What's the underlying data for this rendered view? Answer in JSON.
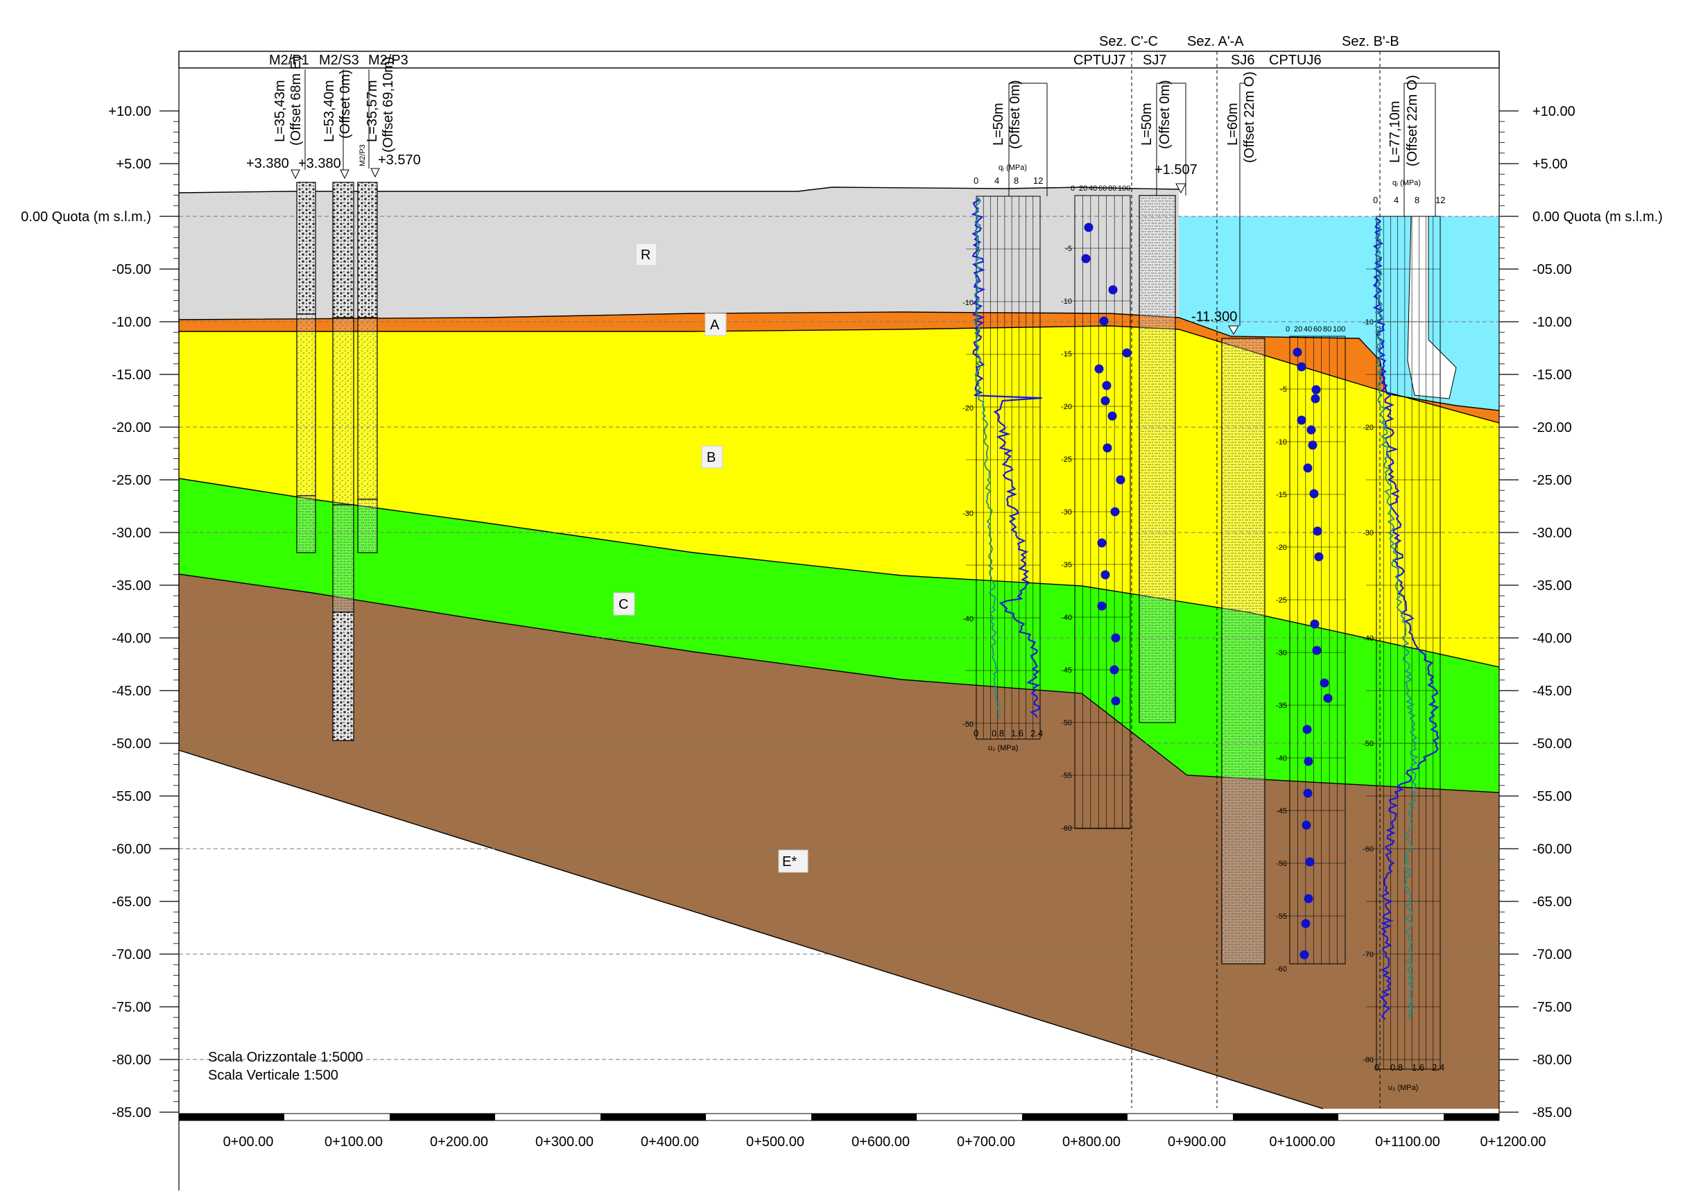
{
  "header": {
    "labels_top": [
      "Sez. C'-C",
      "Sez. A'-A",
      "Sez. B'-B"
    ],
    "labels_bottom": [
      "M2/P1",
      "M2/S3",
      "M2/P3",
      "CPTUJ7",
      "SJ7",
      "SJ6",
      "CPTUJ6"
    ]
  },
  "elevation_axis": {
    "ticks": [
      "+10.00",
      "+5.00",
      "0.00 Quota (m s.l.m.)",
      "-05.00",
      "-10.00",
      "-15.00",
      "-20.00",
      "-25.00",
      "-30.00",
      "-35.00",
      "-40.00",
      "-45.00",
      "-50.00",
      "-55.00",
      "-60.00",
      "-65.00",
      "-70.00",
      "-75.00",
      "-80.00",
      "-85.00"
    ],
    "values": [
      10,
      5,
      0,
      -5,
      -10,
      -15,
      -20,
      -25,
      -30,
      -35,
      -40,
      -45,
      -50,
      -55,
      -60,
      -65,
      -70,
      -75,
      -80,
      -85
    ]
  },
  "chainage_axis": {
    "ticks": [
      "0+00.00",
      "0+100.00",
      "0+200.00",
      "0+300.00",
      "0+400.00",
      "0+500.00",
      "0+600.00",
      "0+700.00",
      "0+800.00",
      "0+900.00",
      "0+1000.00",
      "0+1100.00",
      "0+1200.00"
    ],
    "values": [
      0,
      100,
      200,
      300,
      400,
      500,
      600,
      700,
      800,
      900,
      1000,
      1100,
      1200
    ]
  },
  "layers": [
    {
      "id": "R",
      "label": "R",
      "color": "#d9d9d9"
    },
    {
      "id": "A",
      "label": "A",
      "color": "#f57f17"
    },
    {
      "id": "B",
      "label": "B",
      "color": "#ffff00"
    },
    {
      "id": "C",
      "label": "C",
      "color": "#33ff00"
    },
    {
      "id": "E",
      "label": "E*",
      "color": "#a07048"
    }
  ],
  "water_color": "#80eeff",
  "boreholes": [
    {
      "name": "M2/P1",
      "length": "L=35,43m",
      "offset": "(Offset 68m E)",
      "top": "+3.380"
    },
    {
      "name": "M2/S3",
      "length": "L=53,40m",
      "offset": "(Offset 0m)",
      "top": "+3.380"
    },
    {
      "name": "M2/P3",
      "length": "L=35,57m",
      "offset": "(Offset 69,10m)",
      "top": "+3.570",
      "tag": "M2/P3"
    },
    {
      "name": "CPTUJ7",
      "length": "L=50m",
      "offset": "(Offset 0m)"
    },
    {
      "name": "SJ7",
      "length": "L=50m",
      "offset": "(Offset 0m)",
      "top": "+1.507"
    },
    {
      "name": "SJ6",
      "length": "L=60m",
      "offset": "(Offset 22m O)",
      "top": "-11.300"
    },
    {
      "name": "CPTUJ6",
      "length": "L=77,10m",
      "offset": "(Offset 22m O)"
    }
  ],
  "cpt_chart": {
    "qc_label": "qⱼ (MPa)",
    "qc_ticks": [
      "0",
      "4",
      "8",
      "12"
    ],
    "u2_label": "u₂ (MPa)",
    "u2_ticks": [
      "0",
      "0.8",
      "1.6",
      "2.4"
    ],
    "spt_ticks": [
      "0",
      "20",
      "40",
      "60",
      "80",
      "100"
    ]
  },
  "depth_ticks_cptuj7": [
    "-10",
    "-20",
    "-30",
    "-40",
    "-50"
  ],
  "depth_ticks_sj7": [
    "-5",
    "-10",
    "-15",
    "-20",
    "-25",
    "-30",
    "-35",
    "-40",
    "-45",
    "-50",
    "-55",
    "-60"
  ],
  "depth_ticks_sj6": [
    "-5",
    "-10",
    "-15",
    "-20",
    "-25",
    "-30",
    "-35",
    "-40",
    "-45",
    "-50",
    "-55",
    "-60"
  ],
  "depth_ticks_cptuj6": [
    "-10",
    "-20",
    "-30",
    "-40",
    "-50",
    "-60",
    "-70",
    "-80"
  ],
  "scale_notes": [
    "Scala Orizzontale 1:5000",
    "Scala Verticale 1:500"
  ]
}
